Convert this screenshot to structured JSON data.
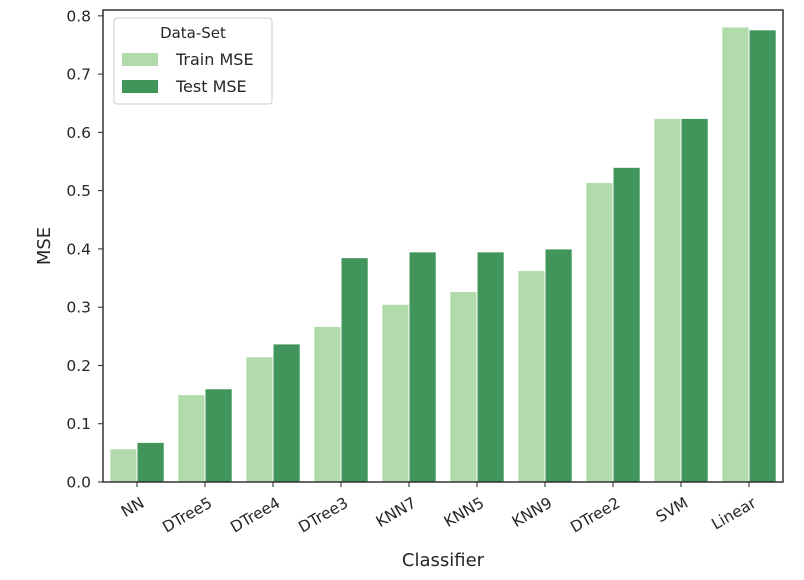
{
  "chart_data": {
    "type": "bar",
    "categories": [
      "NN",
      "DTree5",
      "DTree4",
      "DTree3",
      "KNN7",
      "KNN5",
      "KNN9",
      "DTree2",
      "SVM",
      "Linear"
    ],
    "series": [
      {
        "name": "Train MSE",
        "color": "#b2dbac",
        "values": [
          0.057,
          0.15,
          0.215,
          0.267,
          0.305,
          0.327,
          0.363,
          0.514,
          0.624,
          0.781
        ]
      },
      {
        "name": "Test MSE",
        "color": "#41955a",
        "values": [
          0.068,
          0.16,
          0.237,
          0.385,
          0.395,
          0.395,
          0.4,
          0.54,
          0.624,
          0.776
        ]
      }
    ],
    "xlabel": "Classifier",
    "ylabel": "MSE",
    "ylim": [
      0,
      0.81
    ],
    "yticks": [
      "0.0",
      "0.1",
      "0.2",
      "0.3",
      "0.4",
      "0.5",
      "0.6",
      "0.7",
      "0.8"
    ],
    "legend": {
      "title": "Data-Set",
      "placement": "top-left"
    },
    "grid": false
  }
}
